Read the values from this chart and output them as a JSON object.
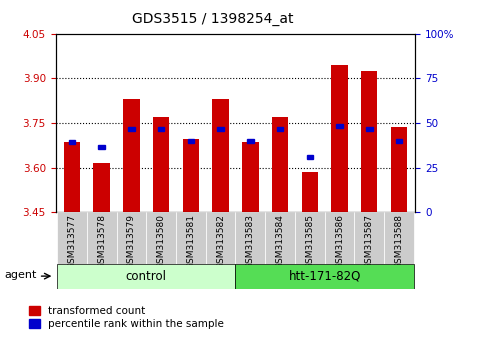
{
  "title": "GDS3515 / 1398254_at",
  "samples": [
    "GSM313577",
    "GSM313578",
    "GSM313579",
    "GSM313580",
    "GSM313581",
    "GSM313582",
    "GSM313583",
    "GSM313584",
    "GSM313585",
    "GSM313586",
    "GSM313587",
    "GSM313588"
  ],
  "red_values": [
    3.685,
    3.615,
    3.83,
    3.77,
    3.695,
    3.83,
    3.685,
    3.77,
    3.585,
    3.945,
    3.925,
    3.735
  ],
  "blue_values": [
    3.685,
    3.67,
    3.73,
    3.73,
    3.69,
    3.73,
    3.69,
    3.73,
    3.635,
    3.74,
    3.73,
    3.69
  ],
  "ymin": 3.45,
  "ymax": 4.05,
  "yticks_left": [
    3.45,
    3.6,
    3.75,
    3.9,
    4.05
  ],
  "yticks_right": [
    0,
    25,
    50,
    75,
    100
  ],
  "gridlines": [
    3.6,
    3.75,
    3.9
  ],
  "bar_color": "#cc0000",
  "blue_color": "#0000cc",
  "bar_width": 0.55,
  "groups": [
    {
      "label": "control",
      "start": 0,
      "end": 5,
      "color": "#ccffcc"
    },
    {
      "label": "htt-171-82Q",
      "start": 6,
      "end": 11,
      "color": "#55dd55"
    }
  ],
  "legend_red": "transformed count",
  "legend_blue": "percentile rank within the sample",
  "left_tick_color": "#cc0000",
  "right_tick_color": "#0000cc"
}
